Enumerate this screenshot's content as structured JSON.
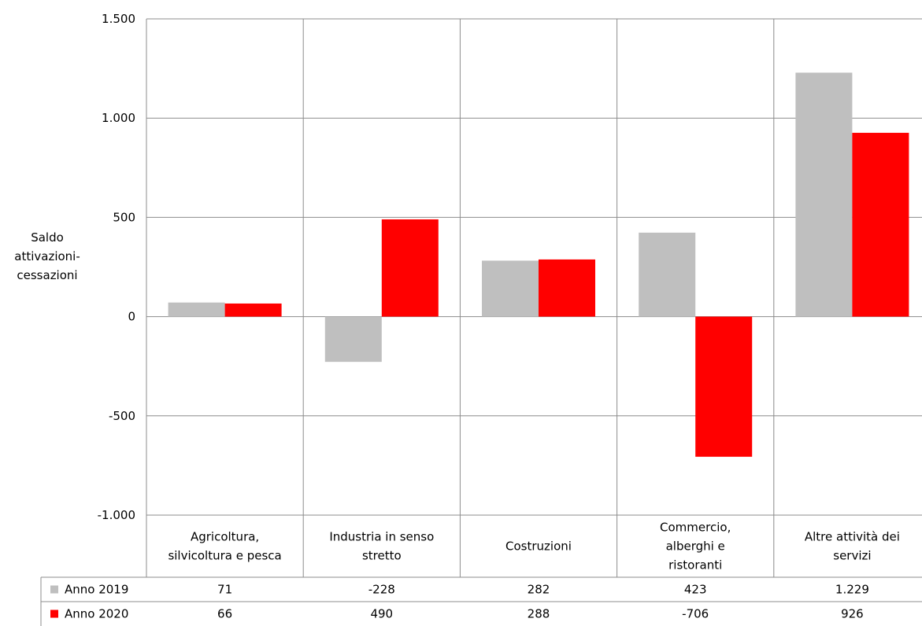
{
  "chart_data": {
    "type": "bar",
    "ylabel": [
      "Saldo",
      "attivazioni-",
      "cessazioni"
    ],
    "ylim": [
      -1000,
      1500
    ],
    "yticks": [
      1500,
      1000,
      500,
      0,
      -500,
      -1000
    ],
    "ytick_labels": [
      "1.500",
      "1.000",
      "500",
      "0",
      "-500",
      "-1.000"
    ],
    "categories": [
      [
        "Agricoltura,",
        "silvicoltura e pesca"
      ],
      [
        "Industria in senso",
        "stretto"
      ],
      [
        "Costruzioni"
      ],
      [
        "Commercio,",
        "alberghi e",
        "ristoranti"
      ],
      [
        "Altre attività dei",
        "servizi"
      ]
    ],
    "series": [
      {
        "name": "Anno 2019",
        "color": "#bfbfbf",
        "values": [
          71,
          -228,
          282,
          423,
          1229
        ],
        "labels": [
          "71",
          "-228",
          "282",
          "423",
          "1.229"
        ]
      },
      {
        "name": "Anno 2020",
        "color": "#ff0000",
        "values": [
          66,
          490,
          288,
          -706,
          926
        ],
        "labels": [
          "66",
          "490",
          "288",
          "-706",
          "926"
        ]
      }
    ],
    "grid": true,
    "legend": "data-table"
  }
}
